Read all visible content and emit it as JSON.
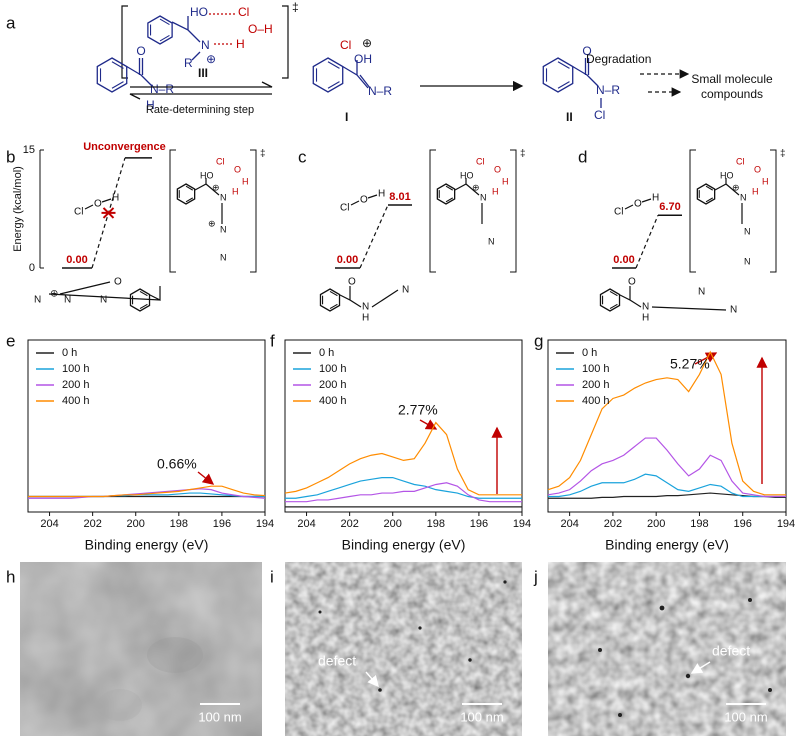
{
  "panel_labels": [
    "a",
    "b",
    "c",
    "d",
    "e",
    "f",
    "g",
    "h",
    "i",
    "j"
  ],
  "scheme": {
    "reactant": [
      "O",
      "N–R",
      "H"
    ],
    "transition_state": [
      "HO",
      "Cl",
      "O–H",
      "N",
      "H",
      "⊕",
      "R"
    ],
    "ts_label": "III",
    "dagger": "‡",
    "step": "Rate-determining   step",
    "intermediate": [
      "Cl",
      "⊕",
      "OH",
      "N–R"
    ],
    "intermediate_label": "I",
    "product": [
      "O",
      "N–R",
      "Cl"
    ],
    "product_label": "II",
    "degradation": "Degradation",
    "small_molecules": [
      "Small molecule",
      "compounds"
    ]
  },
  "energy_structures": [
    {
      "reagent": [
        "Cl",
        "O",
        "H"
      ],
      "ts": [
        "HO",
        "Cl",
        "O",
        "H",
        "H",
        "N",
        "⊕",
        "N",
        "⊕",
        "N"
      ],
      "dagger": "‡",
      "molecule": [
        "N",
        "⊕",
        "N",
        "N",
        "O"
      ]
    },
    {
      "reagent": [
        "Cl",
        "O",
        "H"
      ],
      "ts": [
        "HO",
        "Cl",
        "O",
        "H",
        "H",
        "N",
        "⊕",
        "N"
      ],
      "dagger": "‡",
      "molecule": [
        "O",
        "N",
        "H",
        "N"
      ]
    },
    {
      "reagent": [
        "Cl",
        "O",
        "H"
      ],
      "ts": [
        "HO",
        "Cl",
        "O",
        "H",
        "H",
        "N",
        "⊕",
        "N",
        "N"
      ],
      "dagger": "‡",
      "molecule": [
        "O",
        "N",
        "H",
        "N",
        "N"
      ]
    }
  ],
  "chart_data": [
    {
      "type": "energy",
      "ylabel": "Energy (kcal/mol)",
      "ylim": [
        0,
        15
      ],
      "yticks": [
        0,
        15
      ],
      "values": [
        0,
        14
      ],
      "value_labels": [
        "0.00",
        null
      ],
      "annotation": "Unconvergence",
      "color": "#c00000"
    },
    {
      "type": "energy",
      "ylim": [
        0,
        15
      ],
      "values": [
        0,
        8.01
      ],
      "value_labels": [
        "0.00",
        "8.01"
      ],
      "color": "#c00000"
    },
    {
      "type": "energy",
      "ylim": [
        0,
        15
      ],
      "values": [
        0,
        6.7
      ],
      "value_labels": [
        "0.00",
        "6.70"
      ],
      "color": "#c00000"
    },
    {
      "type": "line",
      "xlabel": "Binding energy (eV)",
      "xlim": [
        205,
        194
      ],
      "xticks": [
        204,
        202,
        200,
        198,
        196,
        194
      ],
      "ylim": [
        0,
        100
      ],
      "x": [
        205,
        204.5,
        204,
        203.5,
        203,
        202.5,
        202,
        201.5,
        201,
        200.5,
        200,
        199.5,
        199,
        198.5,
        198,
        197.5,
        197,
        196.5,
        196,
        195.5,
        195,
        194.5,
        194
      ],
      "annotation": "0.66%",
      "series": [
        {
          "name": "0 h",
          "color": "#222222",
          "values": [
            9,
            9,
            9,
            9,
            9,
            9,
            9,
            9,
            9,
            9,
            9,
            9,
            9,
            9,
            9,
            9,
            9,
            9,
            9,
            9,
            9,
            9,
            9
          ]
        },
        {
          "name": "100 h",
          "color": "#1aa3dc",
          "values": [
            9,
            9,
            9,
            9,
            9,
            9,
            9,
            9,
            9.5,
            9.5,
            10,
            10,
            10,
            10,
            10.5,
            11,
            11,
            10.5,
            10,
            9.5,
            9,
            9,
            9
          ]
        },
        {
          "name": "200 h",
          "color": "#b455e6",
          "values": [
            8,
            8,
            8,
            8,
            8,
            8.5,
            9,
            9,
            9.5,
            10,
            10.5,
            11,
            11.5,
            12,
            12.5,
            13,
            13.5,
            13,
            11,
            10,
            9,
            8.5,
            8
          ]
        },
        {
          "name": "400 h",
          "color": "#ff8c00",
          "values": [
            9,
            9,
            9,
            9,
            9,
            9,
            9,
            9,
            9.5,
            10,
            10,
            10.5,
            11,
            11.5,
            12,
            13,
            14,
            15,
            15,
            13,
            11,
            10,
            9.5
          ]
        }
      ]
    },
    {
      "type": "line",
      "xlabel": "Binding energy (eV)",
      "xlim": [
        205,
        194
      ],
      "xticks": [
        204,
        202,
        200,
        198,
        196,
        194
      ],
      "ylim": [
        0,
        100
      ],
      "x": [
        205,
        204.5,
        204,
        203.5,
        203,
        202.5,
        202,
        201.5,
        201,
        200.5,
        200,
        199.5,
        199,
        198.5,
        198,
        197.5,
        197,
        196.5,
        196,
        195.5,
        195,
        194.5,
        194
      ],
      "annotation": "2.77%",
      "series": [
        {
          "name": "0 h",
          "color": "#222222",
          "values": [
            3,
            3,
            3,
            3,
            3,
            3,
            3,
            3,
            3,
            3,
            3,
            3,
            3,
            3,
            3,
            3,
            3,
            3,
            3,
            3,
            3,
            3,
            3
          ]
        },
        {
          "name": "100 h",
          "color": "#1aa3dc",
          "values": [
            8,
            8,
            9,
            10,
            12,
            14,
            16,
            18,
            19,
            20,
            20,
            18,
            16,
            15,
            13,
            12,
            11,
            9,
            8,
            8,
            8,
            8,
            8
          ]
        },
        {
          "name": "200 h",
          "color": "#b455e6",
          "values": [
            6,
            6,
            6,
            7,
            7,
            8,
            9,
            10,
            10,
            11,
            11,
            12,
            12,
            14,
            16,
            17,
            15,
            10,
            7,
            6,
            6,
            6,
            6
          ]
        },
        {
          "name": "400 h",
          "color": "#ff8c00",
          "values": [
            11,
            12,
            14,
            17,
            20,
            24,
            28,
            31,
            33,
            34,
            32,
            30,
            31,
            40,
            52,
            45,
            25,
            13,
            10,
            10,
            10,
            10,
            10
          ]
        }
      ]
    },
    {
      "type": "line",
      "xlabel": "Binding energy (eV)",
      "xlim": [
        205,
        194
      ],
      "xticks": [
        204,
        202,
        200,
        198,
        196,
        194
      ],
      "ylim": [
        0,
        100
      ],
      "x": [
        205,
        204.5,
        204,
        203.5,
        203,
        202.5,
        202,
        201.5,
        201,
        200.5,
        200,
        199.5,
        199,
        198.5,
        198,
        197.5,
        197,
        196.5,
        196,
        195.5,
        195,
        194.5,
        194
      ],
      "annotation": "5.27%",
      "series": [
        {
          "name": "0 h",
          "color": "#222222",
          "values": [
            8,
            8,
            8,
            8,
            8,
            8.5,
            8.5,
            9,
            9,
            9,
            9,
            9.5,
            9.5,
            10,
            10.5,
            11,
            10.5,
            10,
            9.5,
            9,
            9,
            8.5,
            8.5
          ]
        },
        {
          "name": "100 h",
          "color": "#1aa3dc",
          "values": [
            9,
            9,
            10,
            12,
            15,
            17,
            17,
            17,
            19,
            22,
            21,
            17,
            13,
            12,
            14,
            16,
            15,
            11,
            9,
            9,
            9,
            9,
            9
          ]
        },
        {
          "name": "200 h",
          "color": "#b455e6",
          "values": [
            10,
            11,
            13,
            18,
            24,
            28,
            30,
            33,
            38,
            43,
            43,
            36,
            28,
            21,
            25,
            33,
            30,
            18,
            11,
            10,
            9,
            9,
            9
          ]
        },
        {
          "name": "400 h",
          "color": "#ff8c00",
          "values": [
            13,
            15,
            20,
            30,
            45,
            60,
            66,
            68,
            72,
            75,
            77,
            78,
            77,
            70,
            80,
            93,
            80,
            40,
            18,
            12,
            10,
            10,
            10
          ]
        }
      ]
    }
  ],
  "sem": [
    {
      "scale": "100 nm"
    },
    {
      "scale": "100 nm",
      "annotation": "defect"
    },
    {
      "scale": "100 nm",
      "annotation": "defect"
    }
  ]
}
